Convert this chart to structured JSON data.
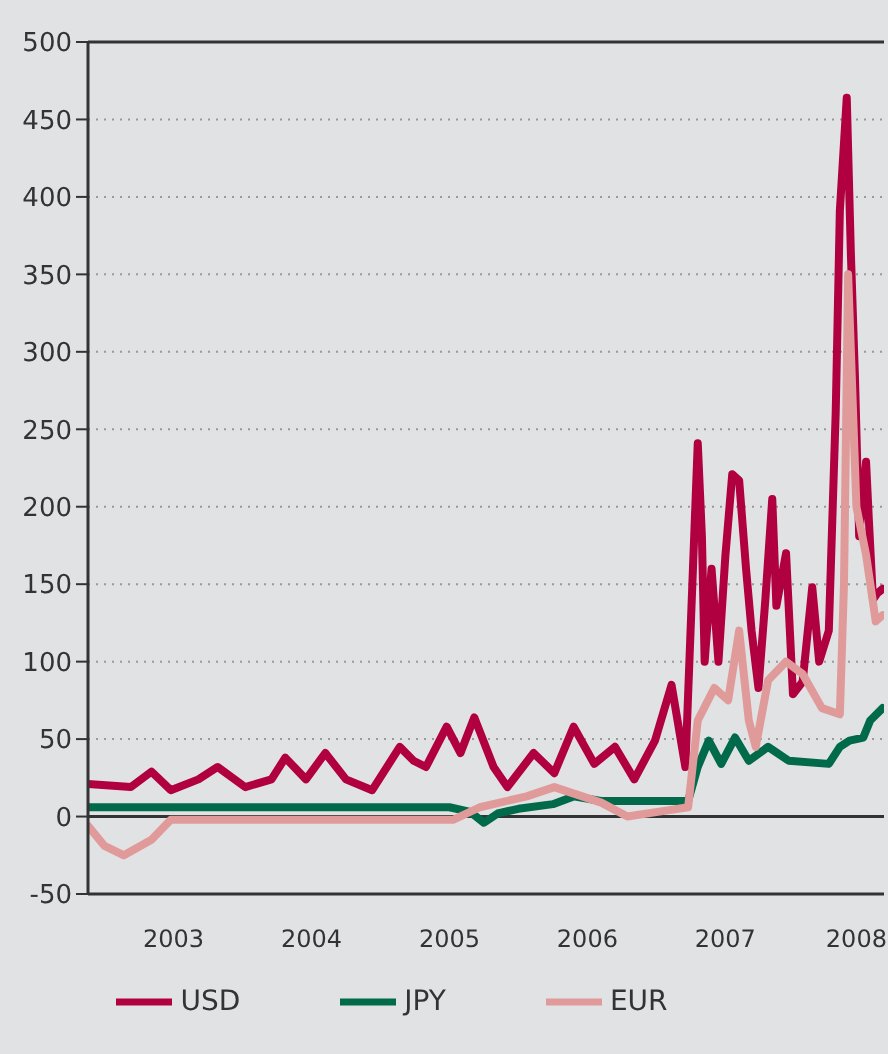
{
  "chart_data": {
    "type": "line",
    "xlim": [
      2002.88,
      2008.65
    ],
    "xticks": [
      {
        "value": 2003.5,
        "label": "2003"
      },
      {
        "value": 2004.5,
        "label": "2004"
      },
      {
        "value": 2005.5,
        "label": "2005"
      },
      {
        "value": 2006.5,
        "label": "2006"
      },
      {
        "value": 2007.5,
        "label": "2007"
      },
      {
        "value": 2008.45,
        "label": "2008"
      }
    ],
    "ylim": [
      -50,
      500
    ],
    "yticks": [
      -50,
      0,
      50,
      100,
      150,
      200,
      250,
      300,
      350,
      400,
      450,
      500
    ],
    "grid": "y",
    "legend": "bottom",
    "line_style": "solid",
    "marker": "none",
    "ref_lines": [
      {
        "axis": "y",
        "value": 0,
        "color": "#333333"
      }
    ],
    "series": [
      {
        "name": "USD",
        "color": "#b0003f",
        "x": [
          2002.88,
          2003.19,
          2003.34,
          2003.48,
          2003.68,
          2003.82,
          2004.02,
          2004.21,
          2004.31,
          2004.46,
          2004.6,
          2004.75,
          2004.94,
          2005.14,
          2005.24,
          2005.33,
          2005.48,
          2005.58,
          2005.68,
          2005.82,
          2005.92,
          2006.11,
          2006.26,
          2006.4,
          2006.55,
          2006.7,
          2006.84,
          2006.99,
          2007.11,
          2007.21,
          2007.3,
          2007.33,
          2007.35,
          2007.4,
          2007.45,
          2007.5,
          2007.55,
          2007.6,
          2007.65,
          2007.69,
          2007.74,
          2007.79,
          2007.84,
          2007.87,
          2007.94,
          2007.99,
          2008.06,
          2008.13,
          2008.18,
          2008.25,
          2008.3,
          2008.33,
          2008.38,
          2008.41,
          2008.44,
          2008.47,
          2008.52,
          2008.54,
          2008.57,
          2008.6,
          2008.64
        ],
        "values": [
          21,
          19,
          29,
          17,
          24,
          32,
          19,
          24,
          38,
          24,
          41,
          24,
          17,
          45,
          36,
          32,
          58,
          41,
          64,
          32,
          19,
          41,
          28,
          58,
          34,
          45,
          24,
          49,
          85,
          32,
          241,
          181,
          100,
          160,
          100,
          168,
          221,
          217,
          160,
          120,
          83,
          140,
          205,
          136,
          170,
          79,
          87,
          148,
          100,
          120,
          261,
          391,
          464,
          363,
          282,
          181,
          229,
          192,
          140,
          144,
          147
        ]
      },
      {
        "name": "JPY",
        "color": "#006a4a",
        "x": [
          2002.88,
          2005.5,
          2005.65,
          2005.75,
          2005.85,
          2006.0,
          2006.25,
          2006.4,
          2006.6,
          2006.85,
          2007.23,
          2007.3,
          2007.38,
          2007.47,
          2007.57,
          2007.67,
          2007.81,
          2007.96,
          2008.25,
          2008.33,
          2008.4,
          2008.5,
          2008.55,
          2008.64
        ],
        "values": [
          6,
          6,
          3,
          -4,
          2,
          5,
          8,
          13,
          10,
          10,
          10,
          32,
          49,
          34,
          51,
          36,
          45,
          36,
          34,
          45,
          49,
          51,
          62,
          70
        ]
      },
      {
        "name": "EUR",
        "color": "#e09a9a",
        "x": [
          2002.88,
          2003.0,
          2003.14,
          2003.34,
          2003.48,
          2004.17,
          2004.9,
          2005.53,
          2005.72,
          2006.06,
          2006.26,
          2006.6,
          2006.79,
          2007.08,
          2007.23,
          2007.3,
          2007.42,
          2007.52,
          2007.6,
          2007.67,
          2007.72,
          2007.81,
          2007.94,
          2008.06,
          2008.2,
          2008.33,
          2008.36,
          2008.39,
          2008.45,
          2008.52,
          2008.59,
          2008.64
        ],
        "values": [
          -6,
          -19,
          -25,
          -15,
          -2,
          -2,
          -2,
          -2,
          6,
          13,
          19,
          9,
          0,
          4,
          6,
          62,
          83,
          75,
          120,
          62,
          45,
          88,
          100,
          92,
          70,
          66,
          150,
          350,
          200,
          169,
          126,
          130
        ]
      }
    ]
  }
}
